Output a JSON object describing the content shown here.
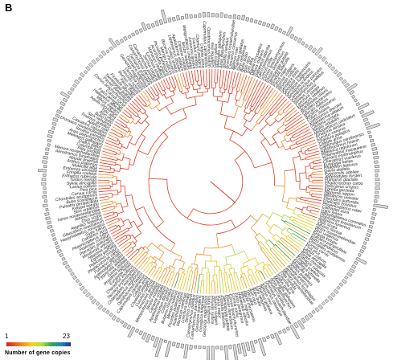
{
  "panel_label": "B",
  "legend": {
    "min": "1",
    "max": "23",
    "title": "Number of gene copies",
    "colors": [
      "#e0191e",
      "#f07a22",
      "#f4d21c",
      "#b7dc3b",
      "#34a853",
      "#1e88b8",
      "#2a2f86"
    ]
  },
  "tree": {
    "type": "circular-phylogeny",
    "tip_count": 240,
    "branch_colors": {
      "basal": "#e23a1f",
      "mid": "#f08a24",
      "warm": "#f2c21a",
      "high": "#b9d23a",
      "peak": "#2f9d4a"
    },
    "tip_labels": [
      "Columba livia",
      "Gallus gallus",
      "Meleagris gallopavo",
      "Anas platyrhynchos",
      "Struthio camelus",
      "Dromaius novaehollandiae",
      "Casuarius casuarius",
      "Apteryx rowi",
      "Tinamus guttatus",
      "Strix nebulosa",
      "Bubo bubo",
      "Asio otus",
      "Tyto alba",
      "Aquila chrysaetos",
      "Milvus migrans",
      "Haliaeetus albicilla",
      "Falco peregrinus",
      "Corvus corax",
      "Corvus brachyrhynchos",
      "Passer domesticus",
      "Taeniopygia guttata",
      "Ficedula albicollis",
      "Parus major",
      "Sturnus vulgaris",
      "Hirundo rustica",
      "Geospiza fortis",
      "Geospiza magnirostris",
      "Geospiza fuliginosa",
      "Geospiza scandens",
      "Camarhynchus parvulus",
      "Camarhynchus pallidus",
      "Serinus canaria",
      "Lonchura striata",
      "Manacus vitellinus",
      "Acanthisitta chloris",
      "Picoides pubescens",
      "Merops nubicus",
      "Buceros rhinoceros",
      "Colius striatus",
      "Leptosomus discolor",
      "Apaloderma vittatum",
      "Cariama cristata",
      "Nestor notabilis",
      "Melopsittacus undulatus",
      "Amazona aestiva",
      "Cuculus canorus",
      "Chaetura pelagica",
      "Calypte anna",
      "Caprimulgus carolinensis",
      "Opisthocomus hoazin",
      "Balearica regulorum",
      "Chlamydotis macqueenii",
      "Tauraco erythrolophus",
      "Charadrius vociferus",
      "Eurypyga helias",
      "Phaethon lepturus",
      "Gavia stellata",
      "Pygoscelis adeliae",
      "Aptenodytes forsteri",
      "Fulmarus glacialis",
      "Phalacrocorax carbo",
      "Pelecanus crispus",
      "Egretta garzetta",
      "Nipponia nippon",
      "Mesitornis unicolor",
      "Pterocles gutturalis",
      "Podiceps cristatus",
      "Phoenicopterus ruber",
      "Cathartes aura",
      "Gyps fulvus",
      "Harpyhaliaetus coronatus",
      "Glaucidium brasilianum",
      "Aegolius funereus",
      "Otus scops",
      "Athene noctua",
      "Ninox novaeseelandiae",
      "Strix uralensis",
      "Ketupa ketupu",
      "Pulsatrix perspicillata",
      "Bubo scandiacus",
      "Chordeiles acutipennis",
      "Corvus cornix",
      "Pica pica",
      "Lanius collurio",
      "Sylvia atricapilla",
      "Turdus merula",
      "Erithacus rubecula",
      "Fringilla coelebs",
      "Emberiza citrinella",
      "Motacilla alba",
      "Anthus pratensis",
      "Alauda arvensis",
      "Aerodramus fuciphagus",
      "Menura novaehollandiae",
      "Pitta sordida"
    ]
  }
}
